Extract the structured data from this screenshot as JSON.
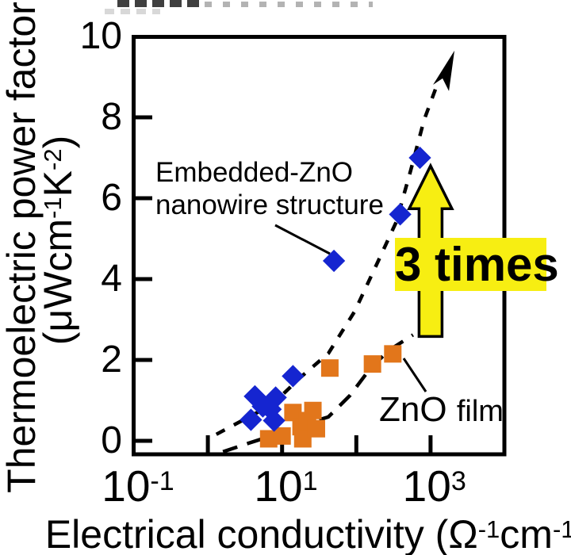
{
  "figure": {
    "kind": "scientific scatter chart",
    "background": "#ffffff"
  },
  "chart_data": {
    "type": "scatter",
    "x_axis": {
      "label_pre": "Electrical conductivity (Ω",
      "label_sup1": "-1",
      "label_mid": "cm",
      "label_sup2": "-1",
      "label_post": ")",
      "scale": "log",
      "range": [
        0.1,
        10000
      ],
      "ticks": [
        {
          "base": "10",
          "exp": "-1",
          "value": 0.1
        },
        {
          "base": "10",
          "exp": "1",
          "value": 10
        },
        {
          "base": "10",
          "exp": "3",
          "value": 1000
        }
      ],
      "minor_ticks": [
        1,
        100
      ]
    },
    "y_axis": {
      "label": "Thermoelectric power factor",
      "unit_pre": "(μWcm",
      "unit_sup1": "-1",
      "unit_mid": "K",
      "unit_sup2": "-2",
      "unit_post": ")",
      "scale": "linear",
      "range": [
        0,
        10
      ],
      "ticks": [
        0,
        2,
        4,
        6,
        8,
        10
      ]
    },
    "series": [
      {
        "name": "Embedded-ZnO nanowire structure",
        "marker": "diamond",
        "color": "#1525d0",
        "points": [
          [
            3.8,
            0.52
          ],
          [
            4.3,
            1.1
          ],
          [
            5.5,
            0.85
          ],
          [
            7.0,
            0.78
          ],
          [
            7.8,
            0.5
          ],
          [
            8.2,
            1.07
          ],
          [
            14,
            1.6
          ],
          [
            50,
            4.45
          ],
          [
            390,
            5.6
          ],
          [
            720,
            7.0
          ]
        ]
      },
      {
        "name": "ZnO film",
        "marker": "square",
        "color": "#e2761b",
        "points": [
          [
            6.6,
            0.05
          ],
          [
            10,
            0.12
          ],
          [
            14,
            0.7
          ],
          [
            18,
            0.35
          ],
          [
            19,
            0.05
          ],
          [
            22,
            0.5
          ],
          [
            26,
            0.75
          ],
          [
            29,
            0.3
          ],
          [
            44,
            1.8
          ],
          [
            165,
            1.9
          ],
          [
            310,
            2.15
          ]
        ]
      }
    ],
    "trend_lines": [
      {
        "series": "Embedded-ZnO nanowire structure",
        "style": "short-dash",
        "arrowhead": true,
        "points": [
          [
            1.3,
            0.16
          ],
          [
            3.1,
            0.53
          ],
          [
            7.4,
            0.9
          ],
          [
            17.7,
            1.57
          ],
          [
            42,
            2.16
          ],
          [
            95,
            3.2
          ],
          [
            200,
            4.47
          ],
          [
            345,
            5.41
          ],
          [
            540,
            6.69
          ],
          [
            820,
            7.94
          ],
          [
            1250,
            8.85
          ]
        ],
        "arrow_tip": [
          2100,
          9.65
        ]
      },
      {
        "series": "ZnO film",
        "style": "long-dash",
        "arrowhead": false,
        "points": [
          [
            1.6,
            -0.27
          ],
          [
            3.5,
            -0.06
          ],
          [
            8.4,
            0.16
          ],
          [
            20,
            0.41
          ],
          [
            42,
            0.59
          ],
          [
            82,
            1.12
          ],
          [
            150,
            1.76
          ],
          [
            270,
            2.23
          ],
          [
            580,
            2.62
          ]
        ]
      }
    ],
    "annotations": {
      "series1_label": {
        "line1": "Embedded-ZnO",
        "line2": "nanowire structure"
      },
      "series2_label": {
        "main": "ZnO",
        "sub": "film"
      },
      "multiplier_callout": {
        "text": "3 times",
        "bg": "#f7ee12",
        "text_color": "#000000"
      },
      "improvement_arrow": {
        "sigma": 1000,
        "tip_pf": 6.8,
        "head_base_pf": 5.74,
        "base_pf": 2.58,
        "fill": "#f7ee12"
      }
    }
  }
}
